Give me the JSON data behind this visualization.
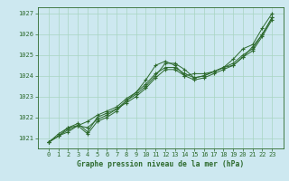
{
  "title": "Graphe pression niveau de la mer (hPa)",
  "bg_color": "#cde8f0",
  "grid_color": "#a8d5c2",
  "line_color": "#2d6a2d",
  "x_values": [
    0,
    1,
    2,
    3,
    4,
    5,
    6,
    7,
    8,
    9,
    10,
    11,
    12,
    13,
    14,
    15,
    16,
    17,
    18,
    19,
    20,
    21,
    22,
    23
  ],
  "line1": [
    1020.8,
    1021.1,
    1021.3,
    1021.6,
    1021.2,
    1021.8,
    1022.0,
    1022.3,
    1022.8,
    1023.2,
    1023.8,
    1024.5,
    1024.7,
    1024.5,
    1024.0,
    1024.1,
    1024.1,
    1024.2,
    1024.4,
    1024.8,
    1025.3,
    1025.5,
    1026.3,
    1027.0
  ],
  "line2": [
    1020.8,
    1021.1,
    1021.5,
    1021.7,
    1021.3,
    1022.0,
    1022.2,
    1022.4,
    1022.8,
    1023.1,
    1023.5,
    1024.0,
    1024.6,
    1024.6,
    1024.3,
    1023.9,
    1024.0,
    1024.2,
    1024.4,
    1024.5,
    1024.9,
    1025.4,
    1026.0,
    1026.8
  ],
  "line3": [
    1020.8,
    1021.1,
    1021.4,
    1021.6,
    1021.5,
    1021.9,
    1022.1,
    1022.4,
    1022.7,
    1023.0,
    1023.4,
    1023.9,
    1024.3,
    1024.3,
    1024.0,
    1023.8,
    1023.9,
    1024.1,
    1024.3,
    1024.5,
    1024.9,
    1025.2,
    1025.9,
    1026.7
  ],
  "line4": [
    1020.8,
    1021.2,
    1021.5,
    1021.6,
    1021.8,
    1022.1,
    1022.3,
    1022.5,
    1022.9,
    1023.2,
    1023.6,
    1024.1,
    1024.4,
    1024.4,
    1024.1,
    1023.9,
    1024.0,
    1024.2,
    1024.4,
    1024.6,
    1025.0,
    1025.3,
    1026.0,
    1026.8
  ],
  "ylim": [
    1020.5,
    1027.3
  ],
  "yticks": [
    1021,
    1022,
    1023,
    1024,
    1025,
    1026,
    1027
  ],
  "xticks": [
    0,
    1,
    2,
    3,
    4,
    5,
    6,
    7,
    8,
    9,
    10,
    11,
    12,
    13,
    14,
    15,
    16,
    17,
    18,
    19,
    20,
    21,
    22,
    23
  ],
  "xlabel_fontsize": 5.8,
  "ylabel_fontsize": 5.0,
  "tick_fontsize": 5.0,
  "marker": "+",
  "marker_size": 3,
  "linewidth": 0.7
}
